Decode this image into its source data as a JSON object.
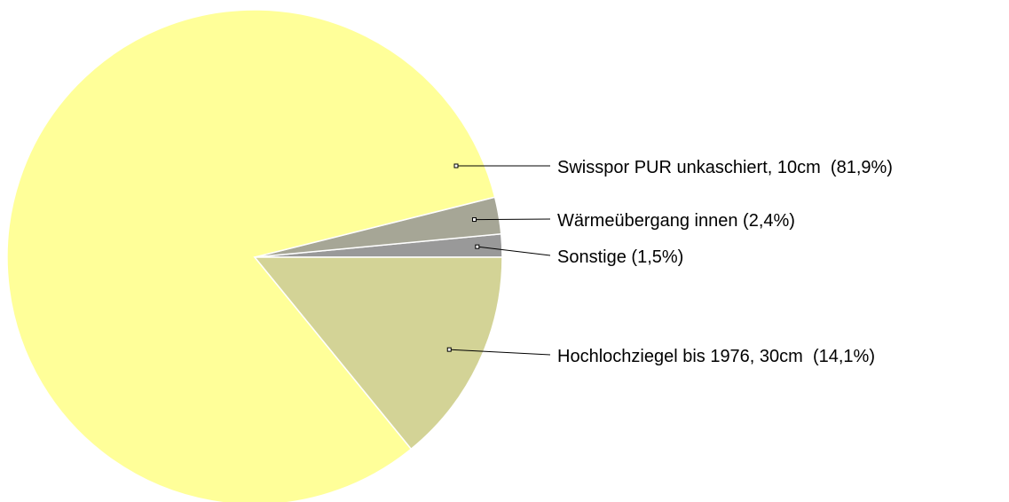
{
  "chart_data": {
    "type": "pie",
    "categories": [
      "Swisspor PUR unkaschiert, 10cm",
      "Wärmeübergang innen",
      "Sonstige",
      "Hochlochziegel bis 1976, 30cm"
    ],
    "values": [
      81.9,
      2.4,
      1.5,
      14.1
    ],
    "value_labels": [
      "(81,9%)",
      "(2,4%)",
      "(1,5%)",
      "(14,1%)"
    ],
    "colors": [
      "#ffff99",
      "#a6a696",
      "#999999",
      "#d3d396"
    ]
  }
}
